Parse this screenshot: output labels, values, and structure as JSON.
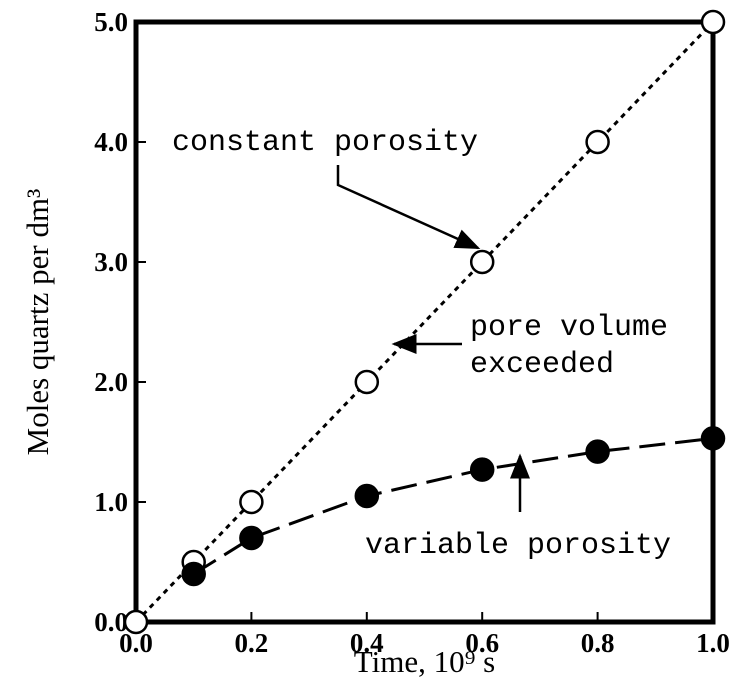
{
  "chart_data": {
    "type": "line",
    "xlabel": "Time, 10⁹ s",
    "ylabel": "Moles quartz per dm³",
    "xlim": [
      0,
      1
    ],
    "ylim": [
      0,
      5
    ],
    "xticks": [
      {
        "value": 0,
        "label": "0.0"
      },
      {
        "value": 0.2,
        "label": "0.2"
      },
      {
        "value": 0.4,
        "label": "0.4"
      },
      {
        "value": 0.6,
        "label": "0.6"
      },
      {
        "value": 0.8,
        "label": "0.8"
      },
      {
        "value": 1,
        "label": "1.0"
      }
    ],
    "yticks": [
      {
        "value": 0,
        "label": "0.0"
      },
      {
        "value": 1,
        "label": "1.0"
      },
      {
        "value": 2,
        "label": "2.0"
      },
      {
        "value": 3,
        "label": "3.0"
      },
      {
        "value": 4,
        "label": "4.0"
      },
      {
        "value": 5,
        "label": "5.0"
      }
    ],
    "series": [
      {
        "name": "constant porosity",
        "color": "#000000",
        "x": [
          0,
          0.1,
          0.2,
          0.4,
          0.6,
          0.8,
          1
        ],
        "values": [
          0,
          0.5,
          1,
          2,
          3,
          4,
          5
        ]
      },
      {
        "name": "variable porosity",
        "color": "#000000",
        "x": [
          0.1,
          0.2,
          0.4,
          0.6,
          0.8,
          1
        ],
        "values": [
          0.4,
          0.7,
          1.05,
          1.27,
          1.42,
          1.53
        ]
      }
    ],
    "annotations": [
      "pore volume",
      "exceeded"
    ]
  }
}
